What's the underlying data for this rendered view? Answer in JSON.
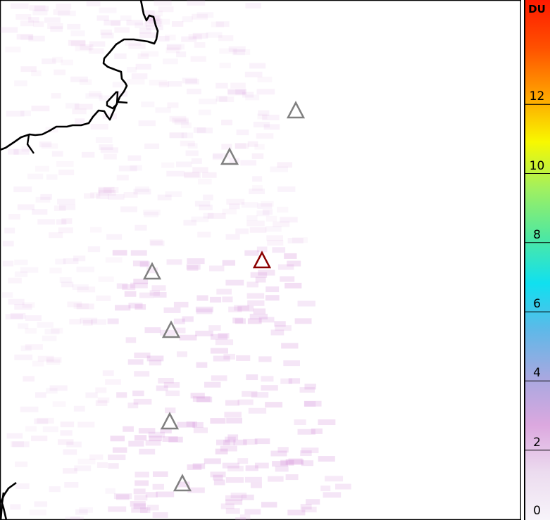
{
  "colorbar": {
    "unit": "DU",
    "ticks": [
      "0",
      "2",
      "4",
      "6",
      "8",
      "10",
      "12"
    ],
    "range": [
      0,
      15
    ],
    "colors": [
      "#f7f4fa",
      "#ecdcef",
      "#dca8df",
      "#a8a8e0",
      "#60b8e8",
      "#10e0f0",
      "#50e8a0",
      "#a0f060",
      "#f8f800",
      "#ffa000",
      "#ff5000",
      "#ff1a00"
    ]
  },
  "markers": {
    "volcano_color": "#808080",
    "highlight_color": "#8b0000"
  }
}
